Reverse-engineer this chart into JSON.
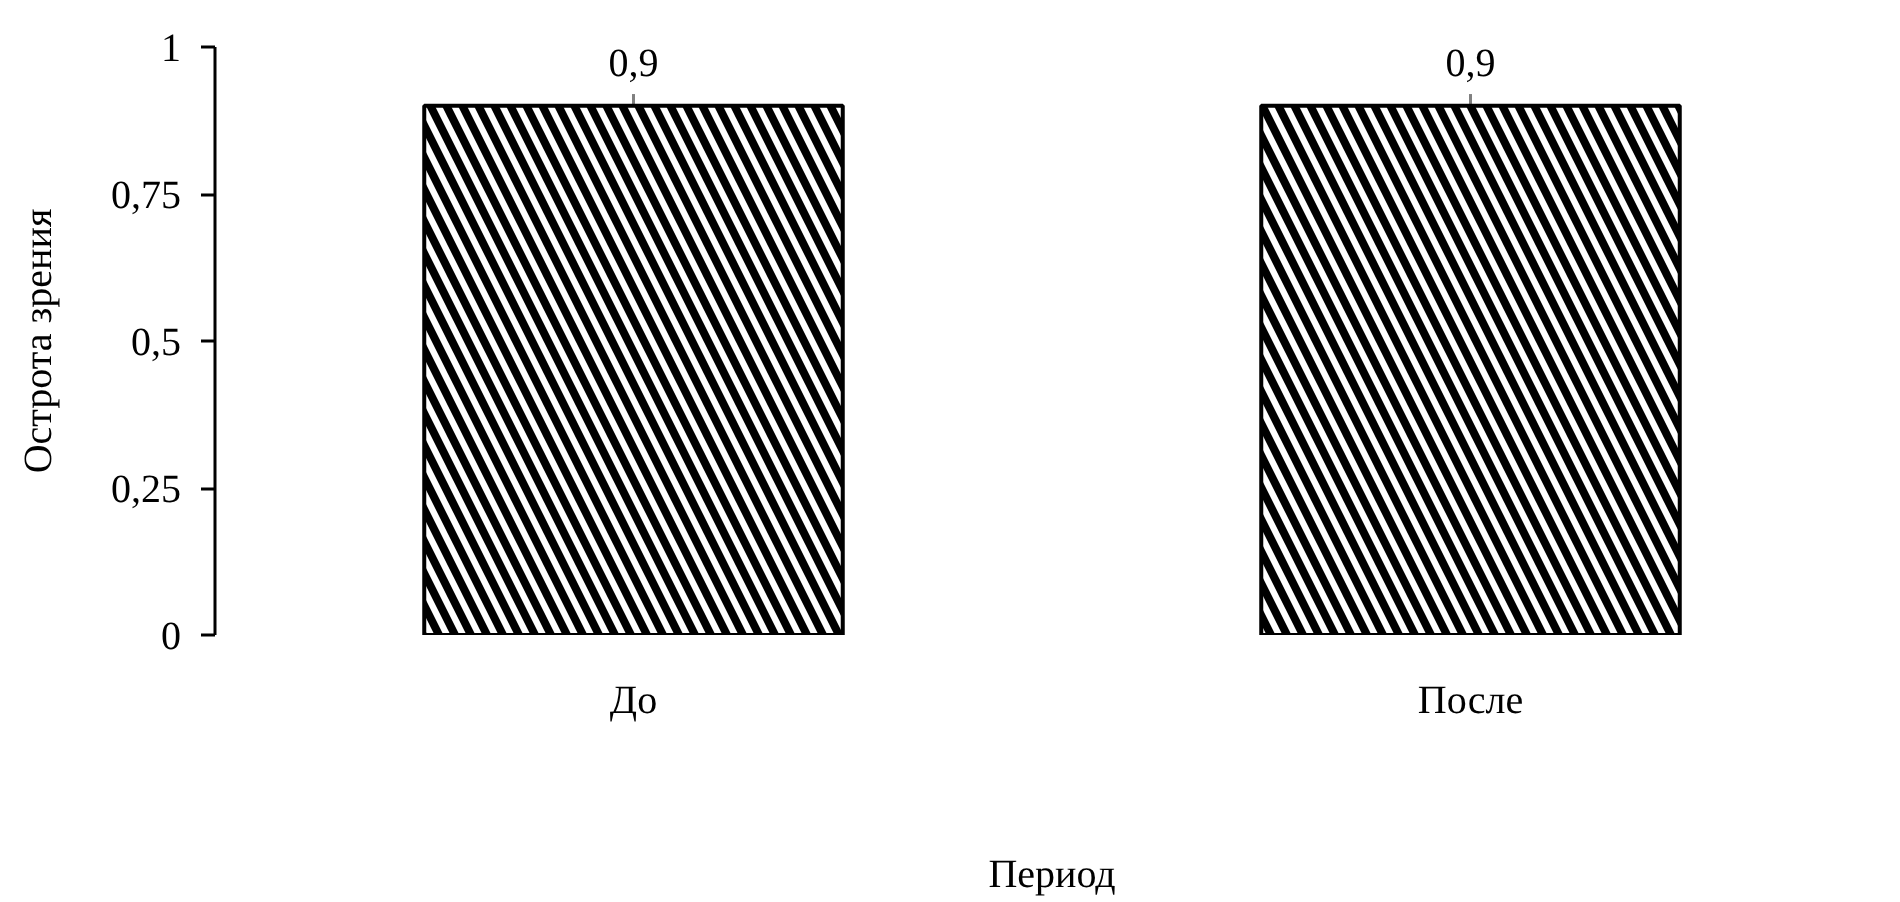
{
  "chart_data": {
    "type": "bar",
    "categories": [
      "До",
      "После"
    ],
    "values": [
      0.9,
      0.9
    ],
    "errors": [
      [
        0.77,
        0.92
      ],
      [
        0.77,
        0.92
      ]
    ],
    "value_labels": [
      "0,9",
      "0,9"
    ],
    "color": "#000000",
    "xlabel": "Период",
    "ylabel": "Острота зрения",
    "ylim": [
      0,
      1
    ],
    "yticks": [
      0,
      {
        "value": 0.25,
        "label": "0,25"
      },
      {
        "value": 0.5,
        "label": "0,5"
      },
      {
        "value": 0.75,
        "label": "0,75"
      },
      1
    ]
  }
}
